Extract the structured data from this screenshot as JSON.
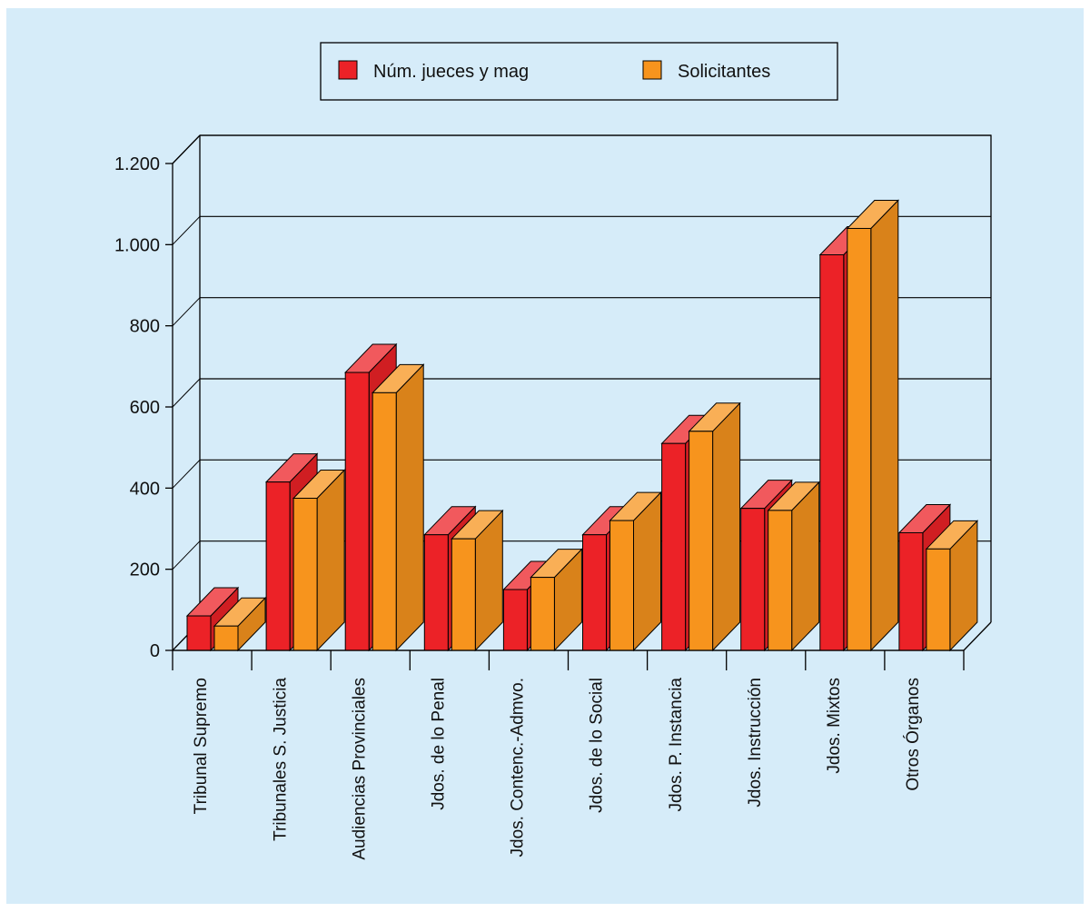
{
  "background_color": "#d6ecf9",
  "chart_data": {
    "type": "bar",
    "title": "",
    "xlabel": "",
    "ylabel": "",
    "ylim": [
      0,
      1200
    ],
    "yticks": [
      0,
      200,
      400,
      600,
      800,
      1000,
      1200
    ],
    "ytick_labels": [
      "0",
      "200",
      "400",
      "600",
      "800",
      "1.000",
      "1.200"
    ],
    "three_d": true,
    "grid": true,
    "legend_position": "top-center",
    "categories": [
      "Tribunal Supremo",
      "Tribunales S. Justicia",
      "Audiencias Provinciales",
      "Jdos. de lo Penal",
      "Jdos. Contenc.-Admvo.",
      "Jdos. de lo Social",
      "Jdos. P. Instancia",
      "Jdos. Instrucción",
      "Jdos. Mixtos",
      "Otros Órganos"
    ],
    "series": [
      {
        "name": "Núm. jueces y mag",
        "color": "#ec2227",
        "values": [
          85,
          415,
          685,
          285,
          150,
          285,
          510,
          350,
          975,
          290
        ]
      },
      {
        "name": "Solicitantes",
        "color": "#f7941d",
        "values": [
          60,
          375,
          635,
          275,
          180,
          320,
          540,
          345,
          1040,
          250
        ]
      }
    ]
  }
}
